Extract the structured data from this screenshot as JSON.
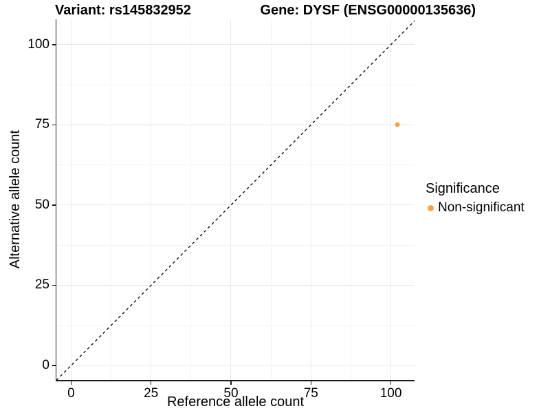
{
  "title": {
    "variant": "Variant: rs145832952",
    "gene": "Gene: DYSF (ENSG00000135636)"
  },
  "legend": {
    "title": "Significance",
    "items": [
      {
        "label": "Non-significant",
        "color": "#F6A545"
      }
    ]
  },
  "colors": {
    "point": "#F6A545",
    "grid_major": "#E8E8E8",
    "grid_minor": "#F3F3F3",
    "axis_line": "#1A1A1A",
    "identity_line": "#000000",
    "background": "#FFFFFF",
    "text": "#000000"
  },
  "chart_data": {
    "type": "scatter",
    "title": "Variant: rs145832952    Gene: DYSF (ENSG00000135636)",
    "xlabel": "Reference allele count",
    "ylabel": "Alternative allele count",
    "xlim": [
      -4.6,
      107.4
    ],
    "ylim": [
      -4.5,
      107.9
    ],
    "x_ticks": [
      0,
      25,
      50,
      75,
      100
    ],
    "y_ticks": [
      0,
      25,
      50,
      75,
      100
    ],
    "grid": {
      "major": true,
      "minor": true
    },
    "legend_position": "right",
    "identity_line": {
      "equation": "y = x",
      "style": "dashed",
      "color": "#000000"
    },
    "series": [
      {
        "name": "Non-significant",
        "color": "#F6A545",
        "points": [
          {
            "x": 102,
            "y": 75
          }
        ]
      }
    ]
  }
}
